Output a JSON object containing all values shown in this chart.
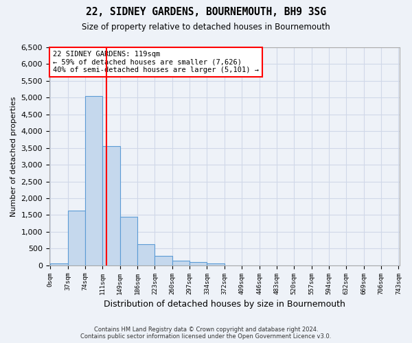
{
  "title1": "22, SIDNEY GARDENS, BOURNEMOUTH, BH9 3SG",
  "title2": "Size of property relative to detached houses in Bournemouth",
  "xlabel": "Distribution of detached houses by size in Bournemouth",
  "ylabel": "Number of detached properties",
  "annotation_title": "22 SIDNEY GARDENS: 119sqm",
  "annotation_line1": "← 59% of detached houses are smaller (7,626)",
  "annotation_line2": "40% of semi-detached houses are larger (5,101) →",
  "footer1": "Contains HM Land Registry data © Crown copyright and database right 2024.",
  "footer2": "Contains public sector information licensed under the Open Government Licence v3.0.",
  "bar_color": "#c5d8ed",
  "bar_edge_color": "#5b9bd5",
  "grid_color": "#d0d8e8",
  "line_color": "red",
  "tick_labels": [
    "0sqm",
    "37sqm",
    "74sqm",
    "111sqm",
    "149sqm",
    "186sqm",
    "223sqm",
    "260sqm",
    "297sqm",
    "334sqm",
    "372sqm",
    "409sqm",
    "446sqm",
    "483sqm",
    "520sqm",
    "557sqm",
    "594sqm",
    "632sqm",
    "669sqm",
    "706sqm",
    "743sqm"
  ],
  "values": [
    50,
    1630,
    5050,
    3550,
    1450,
    620,
    280,
    130,
    90,
    50,
    0,
    0,
    0,
    0,
    0,
    0,
    0,
    0,
    0,
    0
  ],
  "ylim": [
    0,
    6500
  ],
  "yticks": [
    0,
    500,
    1000,
    1500,
    2000,
    2500,
    3000,
    3500,
    4000,
    4500,
    5000,
    5500,
    6000,
    6500
  ],
  "property_size": 119,
  "bin_width": 37,
  "background_color": "#eef2f8"
}
